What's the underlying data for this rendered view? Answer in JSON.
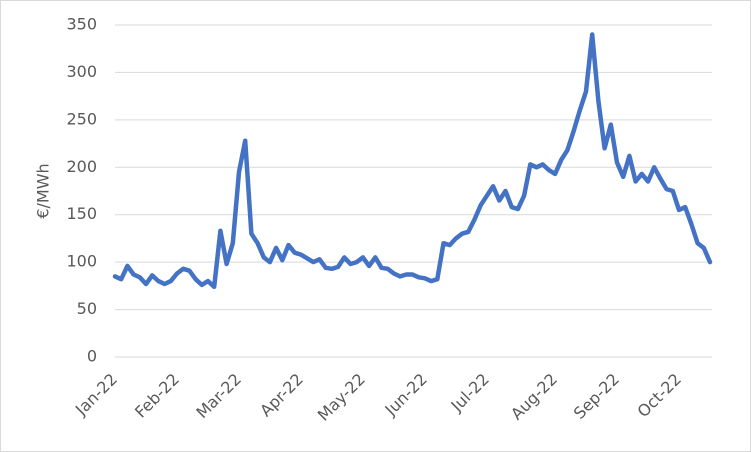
{
  "chart_data": {
    "type": "line",
    "ylabel": "€/MWh",
    "categories": [
      "Jan-22",
      null,
      null,
      null,
      null,
      null,
      null,
      null,
      null,
      null,
      "Feb-22",
      null,
      null,
      null,
      null,
      null,
      null,
      null,
      null,
      null,
      "Mar-22",
      null,
      null,
      null,
      null,
      null,
      null,
      null,
      null,
      null,
      "Apr-22",
      null,
      null,
      null,
      null,
      null,
      null,
      null,
      null,
      null,
      "May-22",
      null,
      null,
      null,
      null,
      null,
      null,
      null,
      null,
      null,
      "Jun-22",
      null,
      null,
      null,
      null,
      null,
      null,
      null,
      null,
      null,
      "Jul-22",
      null,
      null,
      null,
      null,
      null,
      null,
      null,
      null,
      null,
      null,
      "Aug-22",
      null,
      null,
      null,
      null,
      null,
      null,
      null,
      null,
      null,
      "Sep-22",
      null,
      null,
      null,
      null,
      null,
      null,
      null,
      null,
      null,
      "Oct-22",
      null,
      null,
      null,
      null,
      null
    ],
    "series": [
      {
        "color": "#4472c4",
        "values": [
          85,
          82,
          96,
          87,
          84,
          77,
          86,
          80,
          77,
          80,
          88,
          93,
          91,
          82,
          76,
          80,
          74,
          133,
          98,
          120,
          195,
          228,
          130,
          120,
          105,
          100,
          115,
          102,
          118,
          110,
          108,
          104,
          100,
          103,
          94,
          93,
          95,
          105,
          98,
          100,
          105,
          96,
          105,
          94,
          93,
          88,
          85,
          87,
          87,
          84,
          83,
          80,
          82,
          120,
          118,
          125,
          130,
          132,
          145,
          160,
          170,
          180,
          165,
          175,
          158,
          156,
          170,
          203,
          200,
          203,
          197,
          193,
          208,
          218,
          238,
          260,
          280,
          340,
          270,
          220,
          245,
          205,
          190,
          212,
          185,
          193,
          185,
          200,
          188,
          177,
          175,
          155,
          158,
          140,
          120,
          115,
          100
        ]
      }
    ],
    "ylim": [
      0,
      350
    ],
    "yticks": [
      0,
      50,
      100,
      150,
      200,
      250,
      300,
      350
    ],
    "grid": true
  }
}
